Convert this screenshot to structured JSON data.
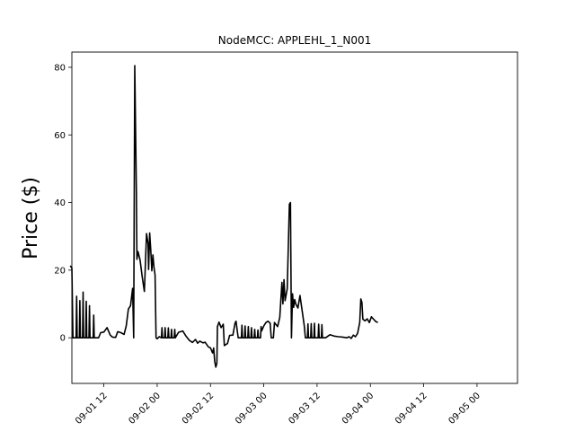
{
  "chart_data": {
    "type": "line",
    "title": "NodeMCC: APPLEHL_1_N001",
    "xlabel": "",
    "ylabel": "Price ($)",
    "xlim": [
      1.2,
      5.38
    ],
    "ylim": [
      -13.5,
      84.5
    ],
    "grid": false,
    "legend": "none",
    "line_color": "#000000",
    "x_ticks": [
      {
        "value": 1.5,
        "label": "09-01 12"
      },
      {
        "value": 2.0,
        "label": "09-02 00"
      },
      {
        "value": 2.5,
        "label": "09-02 12"
      },
      {
        "value": 3.0,
        "label": "09-03 00"
      },
      {
        "value": 3.5,
        "label": "09-03 12"
      },
      {
        "value": 4.0,
        "label": "09-04 00"
      },
      {
        "value": 4.5,
        "label": "09-04 12"
      },
      {
        "value": 5.0,
        "label": "09-05 00"
      }
    ],
    "y_ticks": [
      {
        "value": 0,
        "label": "0"
      },
      {
        "value": 20,
        "label": "20"
      },
      {
        "value": 40,
        "label": "40"
      },
      {
        "value": 60,
        "label": "60"
      },
      {
        "value": 80,
        "label": "80"
      }
    ],
    "series": [
      {
        "points": [
          [
            1.185,
            21.3
          ],
          [
            1.2,
            20.6
          ],
          [
            1.21,
            0
          ],
          [
            1.24,
            0
          ],
          [
            1.245,
            12.3
          ],
          [
            1.25,
            0
          ],
          [
            1.27,
            0
          ],
          [
            1.275,
            11.0
          ],
          [
            1.28,
            0
          ],
          [
            1.3,
            0
          ],
          [
            1.305,
            13.5
          ],
          [
            1.31,
            0
          ],
          [
            1.33,
            0
          ],
          [
            1.335,
            10.8
          ],
          [
            1.34,
            0
          ],
          [
            1.36,
            0
          ],
          [
            1.365,
            9.5
          ],
          [
            1.37,
            0
          ],
          [
            1.4,
            0
          ],
          [
            1.405,
            6.7
          ],
          [
            1.41,
            0
          ],
          [
            1.45,
            0
          ],
          [
            1.47,
            1.5
          ],
          [
            1.5,
            1.7
          ],
          [
            1.53,
            3.0
          ],
          [
            1.56,
            0.8
          ],
          [
            1.58,
            0.2
          ],
          [
            1.61,
            0.1
          ],
          [
            1.63,
            1.8
          ],
          [
            1.66,
            1.5
          ],
          [
            1.69,
            1.0
          ],
          [
            1.71,
            3.5
          ],
          [
            1.73,
            8.5
          ],
          [
            1.75,
            9.5
          ],
          [
            1.77,
            14.6
          ],
          [
            1.78,
            0
          ],
          [
            1.79,
            80.5
          ],
          [
            1.805,
            43
          ],
          [
            1.81,
            23.2
          ],
          [
            1.82,
            25.5
          ],
          [
            1.84,
            23
          ],
          [
            1.86,
            18
          ],
          [
            1.88,
            13.7
          ],
          [
            1.9,
            30.8
          ],
          [
            1.915,
            27.8
          ],
          [
            1.92,
            20.2
          ],
          [
            1.93,
            31
          ],
          [
            1.94,
            26
          ],
          [
            1.95,
            19.8
          ],
          [
            1.96,
            24.5
          ],
          [
            1.97,
            20.8
          ],
          [
            1.98,
            18.6
          ],
          [
            1.99,
            0
          ],
          [
            2.0,
            -0.3
          ],
          [
            2.02,
            0.3
          ],
          [
            2.04,
            0
          ],
          [
            2.045,
            3.0
          ],
          [
            2.05,
            0
          ],
          [
            2.07,
            0
          ],
          [
            2.075,
            3.0
          ],
          [
            2.08,
            0
          ],
          [
            2.1,
            0
          ],
          [
            2.105,
            2.9
          ],
          [
            2.11,
            0
          ],
          [
            2.13,
            0
          ],
          [
            2.135,
            2.5
          ],
          [
            2.14,
            0
          ],
          [
            2.16,
            0
          ],
          [
            2.165,
            2.5
          ],
          [
            2.17,
            0
          ],
          [
            2.2,
            1.6
          ],
          [
            2.24,
            2.0
          ],
          [
            2.27,
            0.5
          ],
          [
            2.3,
            -0.7
          ],
          [
            2.33,
            -1.4
          ],
          [
            2.36,
            -0.5
          ],
          [
            2.38,
            -1.6
          ],
          [
            2.4,
            -1.0
          ],
          [
            2.43,
            -1.5
          ],
          [
            2.45,
            -1.3
          ],
          [
            2.48,
            -2.7
          ],
          [
            2.5,
            -3.0
          ],
          [
            2.52,
            -4.5
          ],
          [
            2.53,
            -3.0
          ],
          [
            2.54,
            -7.0
          ],
          [
            2.55,
            -8.7
          ],
          [
            2.56,
            -7.5
          ],
          [
            2.565,
            3.3
          ],
          [
            2.58,
            4.6
          ],
          [
            2.6,
            3.0
          ],
          [
            2.62,
            4.0
          ],
          [
            2.63,
            -2.3
          ],
          [
            2.66,
            -1.7
          ],
          [
            2.68,
            0.7
          ],
          [
            2.71,
            0.8
          ],
          [
            2.73,
            4.3
          ],
          [
            2.74,
            4.9
          ],
          [
            2.76,
            0
          ],
          [
            2.79,
            0
          ],
          [
            2.795,
            3.7
          ],
          [
            2.8,
            0
          ],
          [
            2.82,
            0
          ],
          [
            2.825,
            3.5
          ],
          [
            2.83,
            0
          ],
          [
            2.85,
            0
          ],
          [
            2.855,
            3.3
          ],
          [
            2.86,
            0
          ],
          [
            2.88,
            0
          ],
          [
            2.885,
            3.0
          ],
          [
            2.89,
            0
          ],
          [
            2.91,
            0
          ],
          [
            2.915,
            2.5
          ],
          [
            2.92,
            0
          ],
          [
            2.94,
            0
          ],
          [
            2.945,
            2.3
          ],
          [
            2.95,
            0
          ],
          [
            2.97,
            0
          ],
          [
            2.975,
            3.3
          ],
          [
            2.98,
            2.0
          ],
          [
            3.0,
            3.5
          ],
          [
            3.02,
            4.5
          ],
          [
            3.04,
            4.9
          ],
          [
            3.06,
            4.3
          ],
          [
            3.07,
            0
          ],
          [
            3.09,
            0
          ],
          [
            3.1,
            4.5
          ],
          [
            3.13,
            3.3
          ],
          [
            3.15,
            6.0
          ],
          [
            3.17,
            16.4
          ],
          [
            3.18,
            10
          ],
          [
            3.19,
            17.2
          ],
          [
            3.2,
            11
          ],
          [
            3.22,
            14.5
          ],
          [
            3.24,
            39.5
          ],
          [
            3.25,
            40
          ],
          [
            3.26,
            0
          ],
          [
            3.27,
            13
          ],
          [
            3.28,
            9
          ],
          [
            3.29,
            11.3
          ],
          [
            3.3,
            10
          ],
          [
            3.32,
            8.8
          ],
          [
            3.34,
            12.5
          ],
          [
            3.36,
            8.0
          ],
          [
            3.38,
            3.5
          ],
          [
            3.39,
            0
          ],
          [
            3.41,
            0
          ],
          [
            3.415,
            4.1
          ],
          [
            3.42,
            0
          ],
          [
            3.44,
            0
          ],
          [
            3.445,
            4.2
          ],
          [
            3.45,
            0
          ],
          [
            3.47,
            0
          ],
          [
            3.475,
            4.3
          ],
          [
            3.48,
            0
          ],
          [
            3.51,
            0
          ],
          [
            3.515,
            4.0
          ],
          [
            3.52,
            0
          ],
          [
            3.54,
            0
          ],
          [
            3.545,
            3.9
          ],
          [
            3.55,
            0
          ],
          [
            3.58,
            0
          ],
          [
            3.62,
            0.9
          ],
          [
            3.66,
            0.5
          ],
          [
            3.7,
            0.3
          ],
          [
            3.74,
            0.2
          ],
          [
            3.78,
            0
          ],
          [
            3.8,
            0.3
          ],
          [
            3.82,
            -0.2
          ],
          [
            3.84,
            0.8
          ],
          [
            3.86,
            0.3
          ],
          [
            3.88,
            1.3
          ],
          [
            3.9,
            4.5
          ],
          [
            3.91,
            11.5
          ],
          [
            3.92,
            10.5
          ],
          [
            3.93,
            5.5
          ],
          [
            3.95,
            5.0
          ],
          [
            3.97,
            5.6
          ],
          [
            3.99,
            4.5
          ],
          [
            4.01,
            6.2
          ],
          [
            4.03,
            5.5
          ],
          [
            4.05,
            4.8
          ],
          [
            4.07,
            4.5
          ]
        ]
      }
    ]
  }
}
